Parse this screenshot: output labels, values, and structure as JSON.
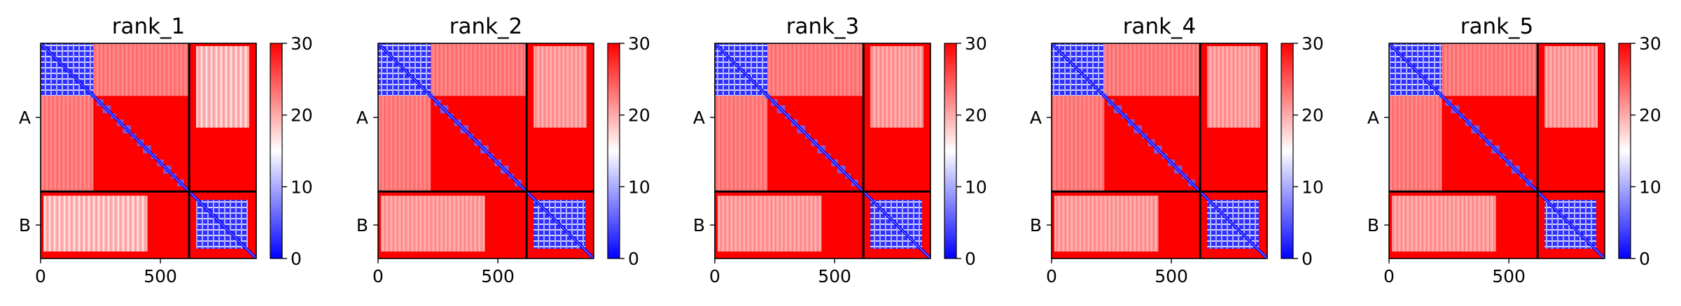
{
  "chart_data": [
    {
      "type": "heatmap",
      "title": "rank_1",
      "x_ticks": [
        0,
        500
      ],
      "y_categories": [
        "A",
        "B"
      ],
      "colorbar": {
        "ticks": [
          0,
          10,
          20,
          30
        ],
        "range": [
          0,
          30
        ],
        "colormap": "bwr"
      },
      "matrix_size": 900,
      "segment_boundary": 620
    },
    {
      "type": "heatmap",
      "title": "rank_2",
      "x_ticks": [
        0,
        500
      ],
      "y_categories": [
        "A",
        "B"
      ],
      "colorbar": {
        "ticks": [
          0,
          10,
          20,
          30
        ],
        "range": [
          0,
          30
        ],
        "colormap": "bwr"
      },
      "matrix_size": 900,
      "segment_boundary": 620
    },
    {
      "type": "heatmap",
      "title": "rank_3",
      "x_ticks": [
        0,
        500
      ],
      "y_categories": [
        "A",
        "B"
      ],
      "colorbar": {
        "ticks": [
          0,
          10,
          20,
          30
        ],
        "range": [
          0,
          30
        ],
        "colormap": "bwr"
      },
      "matrix_size": 900,
      "segment_boundary": 620
    },
    {
      "type": "heatmap",
      "title": "rank_4",
      "x_ticks": [
        0,
        500
      ],
      "y_categories": [
        "A",
        "B"
      ],
      "colorbar": {
        "ticks": [
          0,
          10,
          20,
          30
        ],
        "range": [
          0,
          30
        ],
        "colormap": "bwr"
      },
      "matrix_size": 900,
      "segment_boundary": 620
    },
    {
      "type": "heatmap",
      "title": "rank_5",
      "x_ticks": [
        0,
        500
      ],
      "y_categories": [
        "A",
        "B"
      ],
      "colorbar": {
        "ticks": [
          0,
          10,
          20,
          30
        ],
        "range": [
          0,
          30
        ],
        "colormap": "bwr"
      },
      "matrix_size": 900,
      "segment_boundary": 620
    }
  ],
  "colors": {
    "high": "#ff0000",
    "mid": "#ffffff",
    "low": "#0000ff",
    "divider": "#000000"
  }
}
